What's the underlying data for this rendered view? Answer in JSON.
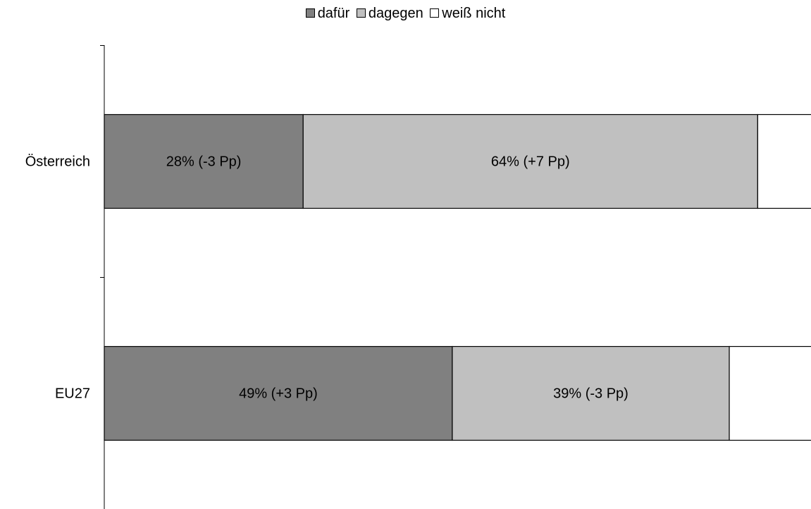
{
  "chart_data": {
    "type": "bar",
    "orientation": "horizontal",
    "stacked": true,
    "categories": [
      "Österreich",
      "EU27"
    ],
    "series": [
      {
        "name": "dafür",
        "color": "#808080",
        "values": [
          28,
          49
        ],
        "labels": [
          "28% (-3 Pp)",
          "49% (+3 Pp)"
        ]
      },
      {
        "name": "dagegen",
        "color": "#c0c0c0",
        "values": [
          64,
          39
        ],
        "labels": [
          "64% (+7 Pp)",
          "39% (-3 Pp)"
        ]
      },
      {
        "name": "weiß nicht",
        "color": "#ffffff",
        "values": [
          8,
          12
        ],
        "labels": [
          "",
          ""
        ]
      }
    ],
    "xlim": [
      0,
      100
    ],
    "grid": false,
    "legend_position": "top-center"
  }
}
